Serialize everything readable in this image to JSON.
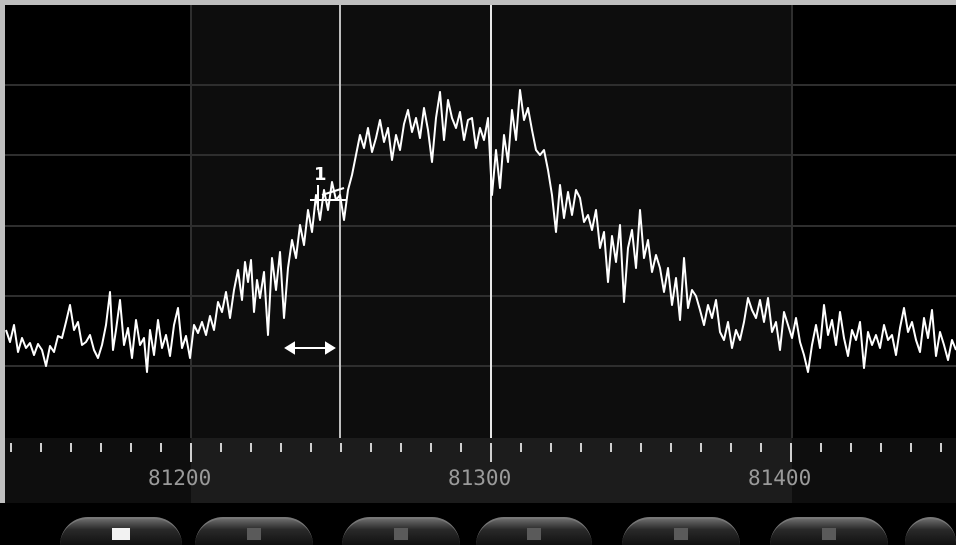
{
  "spectrum": {
    "freq_labels": [
      "81200",
      "81300",
      "81400"
    ],
    "marker": {
      "label": "1"
    },
    "selection_note": "highlighted band around the center frequency",
    "trace": [
      [
        6,
        330
      ],
      [
        10,
        342
      ],
      [
        14,
        325
      ],
      [
        18,
        352
      ],
      [
        22,
        338
      ],
      [
        26,
        348
      ],
      [
        30,
        343
      ],
      [
        34,
        355
      ],
      [
        38,
        344
      ],
      [
        42,
        350
      ],
      [
        46,
        366
      ],
      [
        50,
        346
      ],
      [
        54,
        352
      ],
      [
        58,
        336
      ],
      [
        62,
        338
      ],
      [
        66,
        322
      ],
      [
        70,
        305
      ],
      [
        74,
        330
      ],
      [
        78,
        322
      ],
      [
        82,
        345
      ],
      [
        86,
        342
      ],
      [
        90,
        335
      ],
      [
        94,
        350
      ],
      [
        98,
        358
      ],
      [
        102,
        345
      ],
      [
        106,
        325
      ],
      [
        110,
        292
      ],
      [
        113,
        350
      ],
      [
        116,
        330
      ],
      [
        120,
        300
      ],
      [
        124,
        345
      ],
      [
        128,
        328
      ],
      [
        132,
        358
      ],
      [
        136,
        320
      ],
      [
        140,
        345
      ],
      [
        144,
        338
      ],
      [
        147,
        372
      ],
      [
        150,
        330
      ],
      [
        154,
        355
      ],
      [
        158,
        320
      ],
      [
        162,
        348
      ],
      [
        166,
        335
      ],
      [
        170,
        356
      ],
      [
        174,
        325
      ],
      [
        178,
        308
      ],
      [
        182,
        348
      ],
      [
        186,
        336
      ],
      [
        190,
        358
      ],
      [
        194,
        325
      ],
      [
        198,
        333
      ],
      [
        202,
        322
      ],
      [
        206,
        335
      ],
      [
        210,
        316
      ],
      [
        214,
        330
      ],
      [
        218,
        302
      ],
      [
        222,
        312
      ],
      [
        226,
        292
      ],
      [
        230,
        318
      ],
      [
        234,
        290
      ],
      [
        238,
        270
      ],
      [
        242,
        300
      ],
      [
        245,
        262
      ],
      [
        248,
        282
      ],
      [
        251,
        260
      ],
      [
        254,
        312
      ],
      [
        257,
        280
      ],
      [
        260,
        298
      ],
      [
        264,
        272
      ],
      [
        268,
        335
      ],
      [
        272,
        258
      ],
      [
        276,
        290
      ],
      [
        280,
        252
      ],
      [
        284,
        318
      ],
      [
        288,
        268
      ],
      [
        292,
        240
      ],
      [
        296,
        258
      ],
      [
        300,
        225
      ],
      [
        304,
        245
      ],
      [
        308,
        210
      ],
      [
        312,
        232
      ],
      [
        316,
        195
      ],
      [
        320,
        220
      ],
      [
        324,
        190
      ],
      [
        328,
        210
      ],
      [
        332,
        182
      ],
      [
        336,
        200
      ],
      [
        340,
        195
      ],
      [
        344,
        220
      ],
      [
        348,
        190
      ],
      [
        352,
        175
      ],
      [
        356,
        155
      ],
      [
        360,
        135
      ],
      [
        364,
        148
      ],
      [
        368,
        128
      ],
      [
        372,
        152
      ],
      [
        376,
        138
      ],
      [
        380,
        120
      ],
      [
        384,
        142
      ],
      [
        388,
        128
      ],
      [
        392,
        160
      ],
      [
        396,
        135
      ],
      [
        400,
        150
      ],
      [
        404,
        124
      ],
      [
        408,
        110
      ],
      [
        412,
        132
      ],
      [
        416,
        118
      ],
      [
        420,
        138
      ],
      [
        424,
        108
      ],
      [
        428,
        130
      ],
      [
        432,
        162
      ],
      [
        436,
        118
      ],
      [
        440,
        92
      ],
      [
        444,
        140
      ],
      [
        448,
        100
      ],
      [
        452,
        118
      ],
      [
        456,
        128
      ],
      [
        460,
        112
      ],
      [
        464,
        140
      ],
      [
        468,
        120
      ],
      [
        472,
        118
      ],
      [
        476,
        148
      ],
      [
        480,
        128
      ],
      [
        484,
        140
      ],
      [
        488,
        118
      ],
      [
        492,
        195
      ],
      [
        496,
        150
      ],
      [
        500,
        188
      ],
      [
        504,
        135
      ],
      [
        508,
        162
      ],
      [
        512,
        110
      ],
      [
        516,
        140
      ],
      [
        520,
        90
      ],
      [
        524,
        120
      ],
      [
        528,
        108
      ],
      [
        532,
        130
      ],
      [
        536,
        150
      ],
      [
        540,
        155
      ],
      [
        544,
        150
      ],
      [
        548,
        170
      ],
      [
        552,
        195
      ],
      [
        556,
        232
      ],
      [
        560,
        185
      ],
      [
        564,
        218
      ],
      [
        568,
        192
      ],
      [
        572,
        215
      ],
      [
        576,
        190
      ],
      [
        580,
        198
      ],
      [
        584,
        222
      ],
      [
        588,
        215
      ],
      [
        592,
        230
      ],
      [
        596,
        210
      ],
      [
        600,
        248
      ],
      [
        604,
        232
      ],
      [
        608,
        282
      ],
      [
        612,
        236
      ],
      [
        616,
        262
      ],
      [
        620,
        225
      ],
      [
        624,
        302
      ],
      [
        628,
        248
      ],
      [
        632,
        230
      ],
      [
        636,
        268
      ],
      [
        640,
        210
      ],
      [
        644,
        258
      ],
      [
        648,
        240
      ],
      [
        652,
        272
      ],
      [
        656,
        255
      ],
      [
        660,
        268
      ],
      [
        664,
        292
      ],
      [
        668,
        268
      ],
      [
        672,
        305
      ],
      [
        676,
        278
      ],
      [
        680,
        320
      ],
      [
        684,
        258
      ],
      [
        688,
        308
      ],
      [
        692,
        290
      ],
      [
        696,
        296
      ],
      [
        700,
        310
      ],
      [
        704,
        325
      ],
      [
        708,
        305
      ],
      [
        712,
        318
      ],
      [
        716,
        300
      ],
      [
        720,
        332
      ],
      [
        724,
        340
      ],
      [
        728,
        322
      ],
      [
        732,
        348
      ],
      [
        736,
        330
      ],
      [
        740,
        340
      ],
      [
        744,
        322
      ],
      [
        748,
        298
      ],
      [
        752,
        310
      ],
      [
        756,
        318
      ],
      [
        760,
        300
      ],
      [
        764,
        322
      ],
      [
        768,
        298
      ],
      [
        772,
        332
      ],
      [
        776,
        322
      ],
      [
        780,
        350
      ],
      [
        784,
        312
      ],
      [
        788,
        325
      ],
      [
        792,
        338
      ],
      [
        796,
        318
      ],
      [
        800,
        342
      ],
      [
        804,
        355
      ],
      [
        808,
        372
      ],
      [
        812,
        345
      ],
      [
        816,
        325
      ],
      [
        820,
        348
      ],
      [
        824,
        305
      ],
      [
        828,
        335
      ],
      [
        832,
        320
      ],
      [
        836,
        345
      ],
      [
        840,
        312
      ],
      [
        844,
        338
      ],
      [
        848,
        356
      ],
      [
        852,
        330
      ],
      [
        856,
        340
      ],
      [
        860,
        322
      ],
      [
        864,
        368
      ],
      [
        868,
        332
      ],
      [
        872,
        345
      ],
      [
        876,
        335
      ],
      [
        880,
        348
      ],
      [
        884,
        325
      ],
      [
        888,
        340
      ],
      [
        892,
        335
      ],
      [
        896,
        355
      ],
      [
        900,
        328
      ],
      [
        904,
        308
      ],
      [
        908,
        332
      ],
      [
        912,
        322
      ],
      [
        916,
        340
      ],
      [
        920,
        352
      ],
      [
        924,
        318
      ],
      [
        928,
        338
      ],
      [
        932,
        310
      ],
      [
        936,
        356
      ],
      [
        940,
        332
      ],
      [
        944,
        345
      ],
      [
        948,
        360
      ],
      [
        952,
        340
      ],
      [
        956,
        350
      ]
    ]
  },
  "controls": {
    "buttons": [
      "button-1",
      "button-2",
      "button-3",
      "button-4",
      "button-5",
      "button-6",
      "button-7"
    ],
    "active_button": "button-1"
  }
}
